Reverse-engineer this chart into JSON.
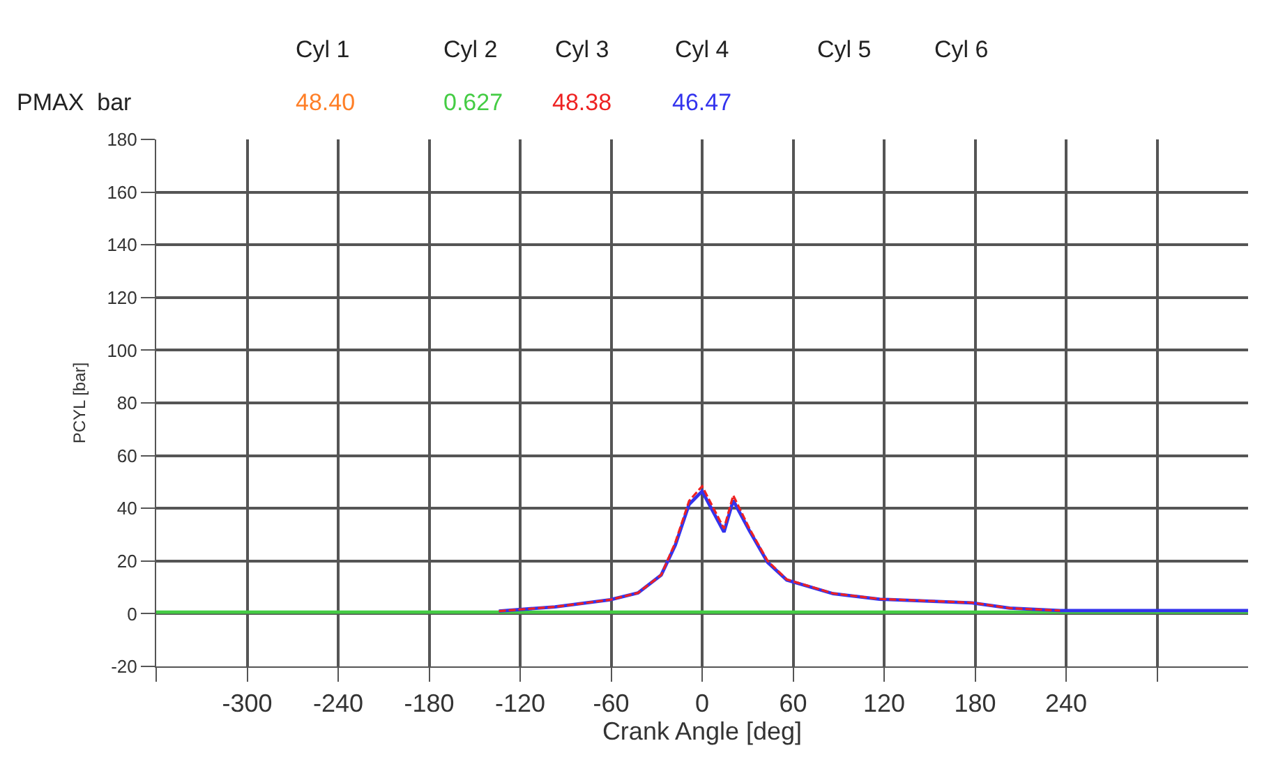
{
  "chart_data": {
    "type": "line",
    "xlabel": "Crank Angle [deg]",
    "ylabel": "PCYL [bar]",
    "annotations": [
      "Cyl 1",
      "Cyl 2",
      "Cyl 3",
      "Cyl 4",
      "Cyl 5",
      "Cyl 6",
      "PMAX  bar",
      "48.40",
      "0.627",
      "48.38",
      "46.47"
    ],
    "series": [
      {
        "color": "#ff7f27"
      },
      {
        "color": "#44cc44",
        "x": [
          -360,
          360
        ],
        "values": [
          0.6,
          0.6
        ]
      },
      {
        "color": "#ee2222",
        "line_style": "dashed",
        "x": [
          -134,
          -97,
          -60.6,
          -42.3,
          -27,
          -17.7,
          -8.6,
          0,
          14.4,
          20.5,
          31.2,
          43.2,
          55.8,
          86.4,
          117,
          178,
          202.8,
          236
        ],
        "values": [
          1,
          2.6,
          5.3,
          7.9,
          14.7,
          27,
          42.8,
          48.4,
          32.3,
          44.9,
          32.3,
          20,
          13,
          7.7,
          5.6,
          4.2,
          2.1,
          1.2
        ]
      },
      {
        "color": "#3333ee",
        "x": [
          -134,
          -97,
          -60.6,
          -42.3,
          -27,
          -17.7,
          -8.6,
          0,
          14.4,
          20.5,
          31.2,
          43.2,
          55.8,
          86.4,
          117,
          178,
          202.8,
          236,
          300,
          360
        ],
        "values": [
          1,
          2.6,
          5.3,
          7.9,
          14.7,
          26,
          41.5,
          46.5,
          31,
          43,
          31.5,
          19.5,
          12.8,
          7.6,
          5.5,
          4.1,
          2.1,
          1.2,
          1.2,
          1.2
        ]
      }
    ],
    "xlim": [
      -360,
      360
    ],
    "xticks": [
      {
        "value": -360,
        "label": null
      },
      -300,
      -240,
      -180,
      -120,
      -60,
      0,
      60,
      120,
      180,
      240,
      {
        "value": 300,
        "label": null
      }
    ],
    "ylim": [
      -20,
      180
    ],
    "yticks": [
      -20,
      0,
      20,
      40,
      60,
      80,
      100,
      120,
      140,
      160,
      180
    ],
    "grid": true,
    "marker": "none",
    "line_style": "solid"
  }
}
